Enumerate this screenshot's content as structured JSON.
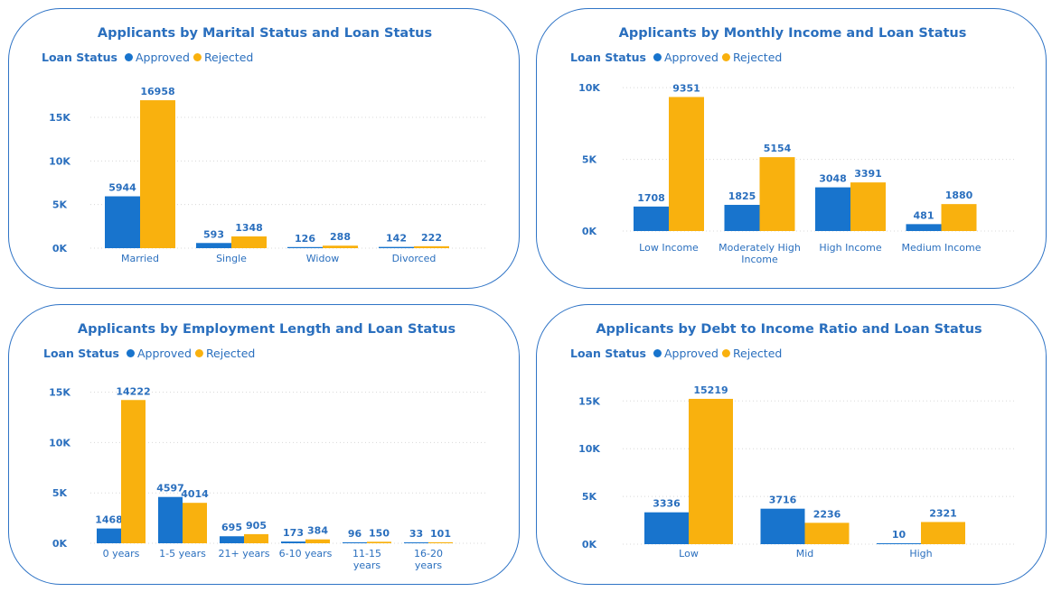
{
  "colors": {
    "approved": "#1874cd",
    "rejected": "#f9b10e",
    "text": "#2a6fbe",
    "border": "#2f74c6"
  },
  "legend": {
    "title": "Loan Status",
    "approved": "Approved",
    "rejected": "Rejected"
  },
  "chart_data": [
    {
      "type": "bar",
      "title": "Applicants by Marital Status and Loan Status",
      "categories": [
        "Married",
        "Single",
        "Widow",
        "Divorced"
      ],
      "series": [
        {
          "name": "Approved",
          "values": [
            5944,
            593,
            126,
            142
          ]
        },
        {
          "name": "Rejected",
          "values": [
            16958,
            1348,
            288,
            222
          ]
        }
      ],
      "yticks": [
        0,
        5000,
        10000,
        15000
      ],
      "ytick_labels": [
        "0K",
        "5K",
        "10K",
        "15K"
      ],
      "ylim": [
        0,
        18000
      ],
      "grid": true,
      "legend_position": "top-left"
    },
    {
      "type": "bar",
      "title": "Applicants by Monthly Income and Loan Status",
      "categories": [
        "Low Income",
        "Moderately High Income",
        "High Income",
        "Medium Income"
      ],
      "series": [
        {
          "name": "Approved",
          "values": [
            1708,
            1825,
            3048,
            481
          ]
        },
        {
          "name": "Rejected",
          "values": [
            9351,
            5154,
            3391,
            1880
          ]
        }
      ],
      "yticks": [
        0,
        5000,
        10000
      ],
      "ytick_labels": [
        "0K",
        "5K",
        "10K"
      ],
      "ylim": [
        0,
        10200
      ],
      "grid": true,
      "legend_position": "top-left"
    },
    {
      "type": "bar",
      "title": "Applicants by Employment Length and Loan Status",
      "categories": [
        "0 years",
        "1-5 years",
        "21+ years",
        "6-10 years",
        "11-15 years",
        "16-20 years"
      ],
      "series": [
        {
          "name": "Approved",
          "values": [
            1468,
            4597,
            695,
            173,
            96,
            33
          ]
        },
        {
          "name": "Rejected",
          "values": [
            14222,
            4014,
            905,
            384,
            150,
            101
          ]
        }
      ],
      "yticks": [
        0,
        5000,
        10000,
        15000
      ],
      "ytick_labels": [
        "0K",
        "5K",
        "10K",
        "15K"
      ],
      "ylim": [
        0,
        15500
      ],
      "grid": true,
      "legend_position": "top-left"
    },
    {
      "type": "bar",
      "title": "Applicants by Debt to Income Ratio and Loan Status",
      "categories": [
        "Low",
        "Mid",
        "High"
      ],
      "series": [
        {
          "name": "Approved",
          "values": [
            3336,
            3716,
            10
          ]
        },
        {
          "name": "Rejected",
          "values": [
            15219,
            2236,
            2321
          ]
        }
      ],
      "yticks": [
        0,
        5000,
        10000,
        15000
      ],
      "ytick_labels": [
        "0K",
        "5K",
        "10K",
        "15K"
      ],
      "ylim": [
        0,
        15500
      ],
      "grid": true,
      "legend_position": "top-left"
    }
  ]
}
